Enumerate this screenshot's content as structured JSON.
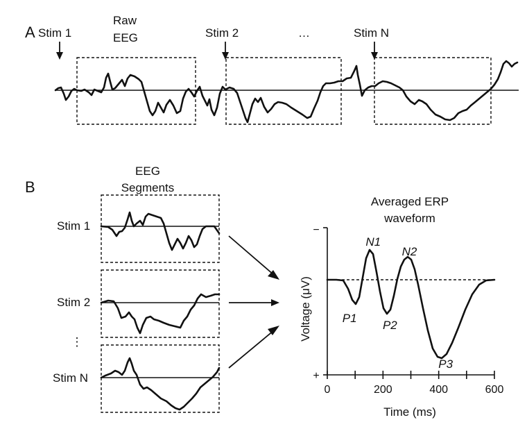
{
  "panel_a": {
    "letter": "A",
    "stim_labels": [
      "Stim 1",
      "Stim 2",
      "Stim N"
    ],
    "ellipsis": "…",
    "raw_label_line1": "Raw",
    "raw_label_line2": "EEG"
  },
  "panel_b": {
    "letter": "B",
    "segments_title_line1": "EEG",
    "segments_title_line2": "Segments",
    "segment_labels": [
      "Stim 1",
      "Stim 2",
      "⋮",
      "Stim N"
    ],
    "erp_title_line1": "Averaged ERP",
    "erp_title_line2": "waveform"
  },
  "chart_data": {
    "type": "line",
    "title": "Averaged ERP waveform",
    "xlabel": "Time (ms)",
    "ylabel": "Voltage (μV)",
    "xlim": [
      0,
      600
    ],
    "x_ticks": [
      "0",
      "200",
      "400",
      "600"
    ],
    "y_end_labels": {
      "top": "−",
      "bottom": "+"
    },
    "y_inverted": true,
    "y_note": "negative up, positive down",
    "baseline": "dashed",
    "peaks": [
      {
        "name": "P1",
        "x": 105
      },
      {
        "name": "N1",
        "x": 160
      },
      {
        "name": "P2",
        "x": 220
      },
      {
        "name": "N2",
        "x": 290
      },
      {
        "name": "P3",
        "x": 405
      }
    ]
  }
}
